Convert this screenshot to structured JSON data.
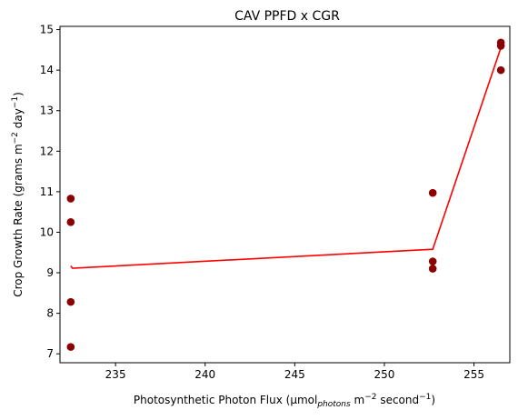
{
  "chart_data": {
    "type": "scatter",
    "title": "CAV PPFD x CGR",
    "xlabel": {
      "prefix": "Photosynthetic Photon Flux (µmol",
      "sub": "photons",
      "mid": " m",
      "sup1": "−2",
      "after": " second",
      "sup2": "−1",
      "close": ")"
    },
    "ylabel": {
      "prefix": "Crop Growth Rate (grams m",
      "sup1": "−2",
      "mid": " day",
      "sup2": "−1",
      "close": ")"
    },
    "xlim": [
      231.9,
      257.0
    ],
    "ylim": [
      6.78,
      15.08
    ],
    "xticks": [
      235,
      240,
      245,
      250,
      255
    ],
    "yticks": [
      7,
      8,
      9,
      10,
      11,
      12,
      13,
      14,
      15
    ],
    "grid": false,
    "points": [
      {
        "x": 232.5,
        "y": 10.83
      },
      {
        "x": 232.5,
        "y": 10.25
      },
      {
        "x": 232.5,
        "y": 8.28
      },
      {
        "x": 232.5,
        "y": 7.17
      },
      {
        "x": 252.7,
        "y": 10.97
      },
      {
        "x": 252.7,
        "y": 9.28
      },
      {
        "x": 252.7,
        "y": 9.1
      },
      {
        "x": 256.5,
        "y": 14.68
      },
      {
        "x": 256.5,
        "y": 14.6
      },
      {
        "x": 256.5,
        "y": 14.0
      }
    ],
    "line": [
      {
        "x": 232.5,
        "y": 9.17
      },
      {
        "x": 232.6,
        "y": 9.11
      },
      {
        "x": 252.7,
        "y": 9.58
      },
      {
        "x": 256.5,
        "y": 14.55
      }
    ],
    "colors": {
      "points": "#8b0000",
      "line": "#ff0000"
    }
  }
}
